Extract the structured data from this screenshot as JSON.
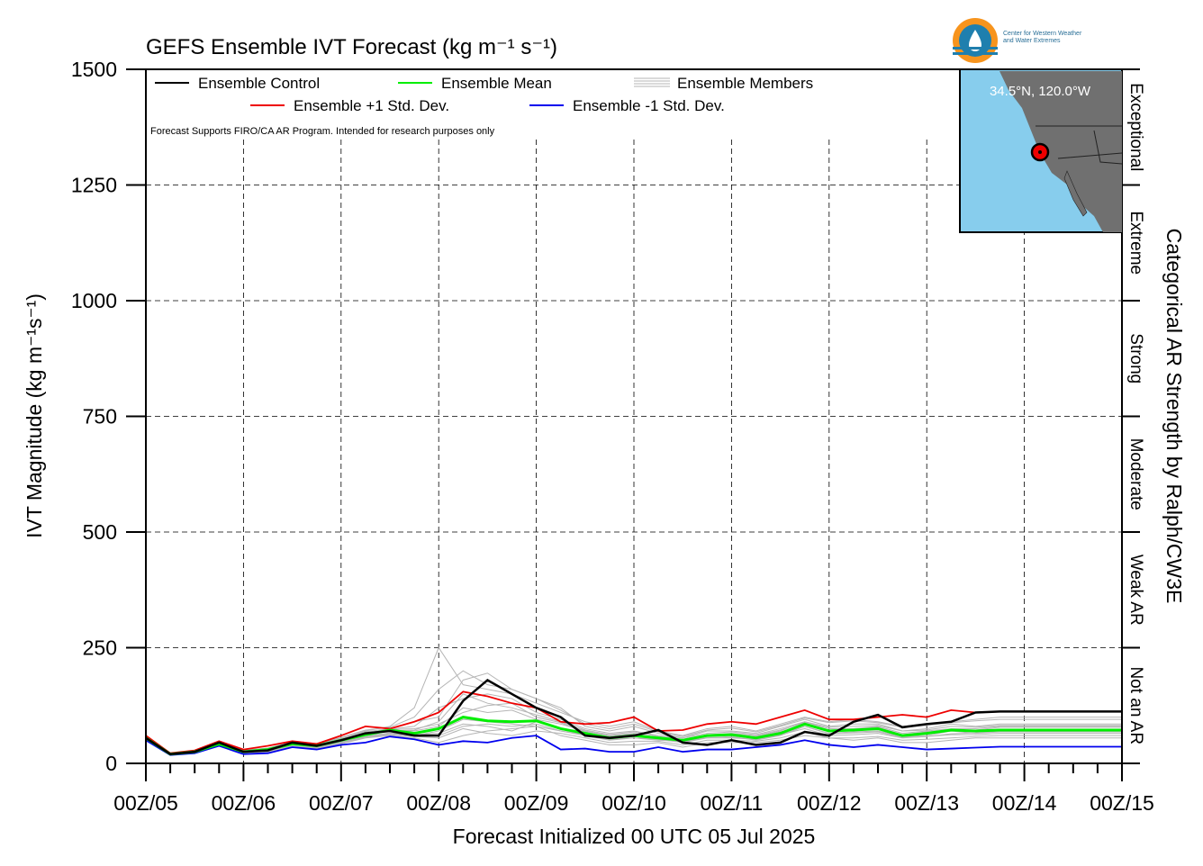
{
  "chart_data": {
    "type": "line",
    "title": "GEFS Ensemble IVT Forecast (kg m⁻¹ s⁻¹)",
    "ylabel": "IVT Magnitude (kg m⁻¹s⁻¹)",
    "xlabel": "Forecast Initialized 00 UTC 05 Jul 2025",
    "right_label": "Categorical AR Strength by Ralph/CW3E",
    "note": "Forecast Supports FIRO/CA AR Program. Intended for research purposes only",
    "ylim": [
      0,
      1500
    ],
    "xlim": [
      0,
      240
    ],
    "x_unit": "forecast hours",
    "yticks": [
      0,
      250,
      500,
      750,
      1000,
      1250,
      1500
    ],
    "ytick_labels": [
      "0",
      "250",
      "500",
      "750",
      "1000",
      "1250",
      "1500"
    ],
    "xticks": [
      0,
      24,
      48,
      72,
      96,
      120,
      144,
      168,
      192,
      216,
      240
    ],
    "xtick_labels": [
      "00Z/05",
      "00Z/06",
      "00Z/07",
      "00Z/08",
      "00Z/09",
      "00Z/10",
      "00Z/11",
      "00Z/12",
      "00Z/13",
      "00Z/14",
      "00Z/15"
    ],
    "grid": true,
    "legend_position": "top-left",
    "categories_right": [
      {
        "label": "Not an AR",
        "from": 0,
        "to": 250
      },
      {
        "label": "Weak AR",
        "from": 250,
        "to": 500
      },
      {
        "label": "Moderate",
        "from": 500,
        "to": 750
      },
      {
        "label": "Strong",
        "from": 750,
        "to": 1000
      },
      {
        "label": "Extreme",
        "from": 1000,
        "to": 1250
      },
      {
        "label": "Exceptional",
        "from": 1250,
        "to": 1500
      }
    ],
    "inset": {
      "label": "34.5°N, 120.0°W",
      "land_color": "#707070",
      "ocean_color": "#87cded"
    },
    "series": [
      {
        "name": "Ensemble Control",
        "color": "#000000",
        "x": [
          0,
          6,
          12,
          18,
          24,
          30,
          36,
          42,
          48,
          54,
          60,
          66,
          72,
          78,
          84,
          90,
          96,
          102,
          108,
          114,
          120,
          126,
          132,
          138,
          144,
          150,
          156,
          162,
          168,
          174,
          180,
          186,
          192,
          198,
          204,
          210,
          216,
          222,
          228,
          234,
          240
        ],
        "values": [
          55,
          20,
          25,
          45,
          25,
          28,
          45,
          38,
          50,
          65,
          70,
          60,
          60,
          135,
          180,
          150,
          120,
          100,
          60,
          55,
          60,
          72,
          45,
          40,
          50,
          40,
          45,
          68,
          60,
          90,
          105,
          78,
          85,
          90,
          110,
          112,
          112,
          112,
          112,
          112,
          112
        ]
      },
      {
        "name": "Ensemble Mean",
        "color": "#00ee00",
        "x": [
          0,
          6,
          12,
          18,
          24,
          30,
          36,
          42,
          48,
          54,
          60,
          66,
          72,
          78,
          84,
          90,
          96,
          102,
          108,
          114,
          120,
          126,
          132,
          138,
          144,
          150,
          156,
          162,
          168,
          174,
          180,
          186,
          192,
          198,
          204,
          210,
          216,
          222,
          228,
          234,
          240
        ],
        "values": [
          55,
          20,
          25,
          42,
          25,
          30,
          42,
          38,
          50,
          62,
          72,
          65,
          75,
          100,
          92,
          90,
          92,
          75,
          65,
          55,
          60,
          55,
          50,
          60,
          62,
          55,
          65,
          85,
          70,
          72,
          75,
          60,
          65,
          72,
          70,
          72,
          72,
          72,
          72,
          72,
          72
        ]
      },
      {
        "name": "Ensemble +1 Std. Dev.",
        "color": "#ee0000",
        "x": [
          0,
          6,
          12,
          18,
          24,
          30,
          36,
          42,
          48,
          54,
          60,
          66,
          72,
          78,
          84,
          90,
          96,
          102,
          108,
          114,
          120,
          126,
          132,
          138,
          144,
          150,
          156,
          162,
          168,
          174,
          180,
          186,
          192,
          198,
          204,
          210,
          216,
          222,
          228,
          234,
          240
        ],
        "values": [
          60,
          22,
          28,
          48,
          30,
          38,
          48,
          42,
          60,
          80,
          75,
          90,
          110,
          155,
          145,
          130,
          120,
          90,
          85,
          88,
          100,
          70,
          72,
          85,
          90,
          85,
          100,
          115,
          95,
          95,
          100,
          105,
          100,
          115,
          110,
          112,
          112,
          112,
          112,
          112,
          112
        ]
      },
      {
        "name": "Ensemble -1 Std. Dev.",
        "color": "#0000ee",
        "x": [
          0,
          6,
          12,
          18,
          24,
          30,
          36,
          42,
          48,
          54,
          60,
          66,
          72,
          78,
          84,
          90,
          96,
          102,
          108,
          114,
          120,
          126,
          132,
          138,
          144,
          150,
          156,
          162,
          168,
          174,
          180,
          186,
          192,
          198,
          204,
          210,
          216,
          222,
          228,
          234,
          240
        ],
        "values": [
          50,
          18,
          22,
          38,
          20,
          22,
          35,
          30,
          40,
          45,
          58,
          52,
          40,
          48,
          45,
          55,
          60,
          30,
          32,
          25,
          25,
          35,
          25,
          30,
          30,
          35,
          40,
          50,
          40,
          35,
          40,
          35,
          30,
          32,
          34,
          36,
          36,
          36,
          36,
          36,
          36
        ]
      }
    ],
    "members_label": "Ensemble Members",
    "members_color": "#b5b5b5",
    "members_x": [
      0,
      6,
      12,
      18,
      24,
      30,
      36,
      42,
      48,
      54,
      60,
      66,
      72,
      78,
      84,
      90,
      96,
      102,
      108,
      114,
      120,
      126,
      132,
      138,
      144,
      150,
      156,
      162,
      168,
      174,
      180,
      186,
      192,
      198,
      204,
      210,
      216,
      222,
      228,
      234,
      240
    ],
    "members": [
      [
        52,
        20,
        24,
        40,
        22,
        26,
        40,
        35,
        45,
        60,
        65,
        60,
        70,
        95,
        90,
        85,
        80,
        70,
        60,
        50,
        55,
        50,
        48,
        55,
        58,
        50,
        60,
        80,
        65,
        68,
        70,
        58,
        60,
        70,
        65,
        68,
        68,
        68,
        68,
        68,
        68
      ],
      [
        58,
        22,
        26,
        46,
        28,
        32,
        46,
        42,
        55,
        70,
        80,
        120,
        250,
        170,
        160,
        150,
        130,
        110,
        90,
        80,
        90,
        70,
        60,
        75,
        80,
        70,
        85,
        100,
        90,
        95,
        90,
        80,
        85,
        90,
        95,
        100,
        100,
        100,
        100,
        100,
        100
      ],
      [
        50,
        18,
        22,
        38,
        20,
        24,
        36,
        32,
        42,
        55,
        60,
        55,
        45,
        60,
        70,
        75,
        80,
        60,
        50,
        40,
        40,
        45,
        35,
        45,
        45,
        45,
        50,
        60,
        55,
        50,
        55,
        45,
        45,
        50,
        55,
        55,
        55,
        55,
        55,
        55,
        55
      ],
      [
        56,
        21,
        26,
        44,
        26,
        30,
        44,
        40,
        52,
        68,
        75,
        90,
        100,
        180,
        195,
        160,
        140,
        120,
        80,
        70,
        80,
        65,
        55,
        70,
        70,
        65,
        80,
        95,
        80,
        85,
        85,
        70,
        75,
        85,
        80,
        85,
        85,
        85,
        85,
        85,
        85
      ],
      [
        54,
        20,
        25,
        42,
        24,
        28,
        42,
        38,
        48,
        64,
        70,
        70,
        80,
        120,
        110,
        115,
        95,
        85,
        70,
        60,
        65,
        55,
        50,
        60,
        62,
        58,
        70,
        90,
        75,
        75,
        80,
        65,
        70,
        75,
        75,
        80,
        80,
        80,
        80,
        80,
        80
      ],
      [
        53,
        19,
        24,
        41,
        23,
        27,
        41,
        36,
        46,
        58,
        66,
        62,
        65,
        85,
        80,
        70,
        90,
        75,
        65,
        55,
        58,
        52,
        45,
        55,
        55,
        52,
        62,
        75,
        60,
        62,
        65,
        55,
        58,
        62,
        62,
        65,
        65,
        65,
        65,
        65,
        65
      ],
      [
        57,
        21,
        27,
        45,
        27,
        31,
        45,
        41,
        53,
        66,
        74,
        80,
        120,
        140,
        150,
        140,
        110,
        95,
        75,
        65,
        70,
        60,
        55,
        65,
        68,
        62,
        75,
        90,
        78,
        80,
        82,
        70,
        72,
        80,
        78,
        82,
        82,
        82,
        82,
        82,
        82
      ],
      [
        51,
        19,
        23,
        39,
        21,
        25,
        38,
        33,
        44,
        56,
        62,
        58,
        55,
        75,
        65,
        60,
        70,
        65,
        55,
        45,
        48,
        48,
        40,
        50,
        50,
        48,
        55,
        68,
        55,
        55,
        58,
        50,
        52,
        55,
        58,
        60,
        60,
        60,
        60,
        60,
        60
      ],
      [
        55,
        20,
        25,
        43,
        25,
        29,
        43,
        39,
        50,
        62,
        70,
        72,
        90,
        150,
        130,
        120,
        105,
        90,
        72,
        62,
        68,
        58,
        52,
        62,
        65,
        60,
        72,
        88,
        72,
        75,
        78,
        62,
        68,
        72,
        72,
        78,
        78,
        78,
        78,
        78,
        78
      ],
      [
        56,
        22,
        26,
        44,
        26,
        30,
        44,
        40,
        51,
        63,
        73,
        75,
        85,
        110,
        125,
        130,
        100,
        88,
        68,
        58,
        64,
        56,
        50,
        60,
        62,
        56,
        68,
        84,
        70,
        72,
        74,
        62,
        64,
        70,
        70,
        74,
        74,
        74,
        74,
        74,
        74
      ],
      [
        52,
        19,
        24,
        40,
        22,
        26,
        40,
        34,
        45,
        57,
        64,
        60,
        60,
        80,
        85,
        80,
        85,
        70,
        62,
        52,
        55,
        52,
        46,
        56,
        56,
        52,
        62,
        80,
        64,
        66,
        68,
        56,
        58,
        64,
        66,
        70,
        70,
        70,
        70,
        70,
        70
      ],
      [
        58,
        22,
        27,
        47,
        29,
        33,
        47,
        43,
        56,
        72,
        78,
        100,
        160,
        200,
        170,
        160,
        140,
        115,
        85,
        75,
        85,
        68,
        58,
        72,
        76,
        68,
        82,
        98,
        88,
        92,
        88,
        78,
        82,
        88,
        92,
        95,
        95,
        95,
        95,
        95,
        95
      ]
    ]
  }
}
